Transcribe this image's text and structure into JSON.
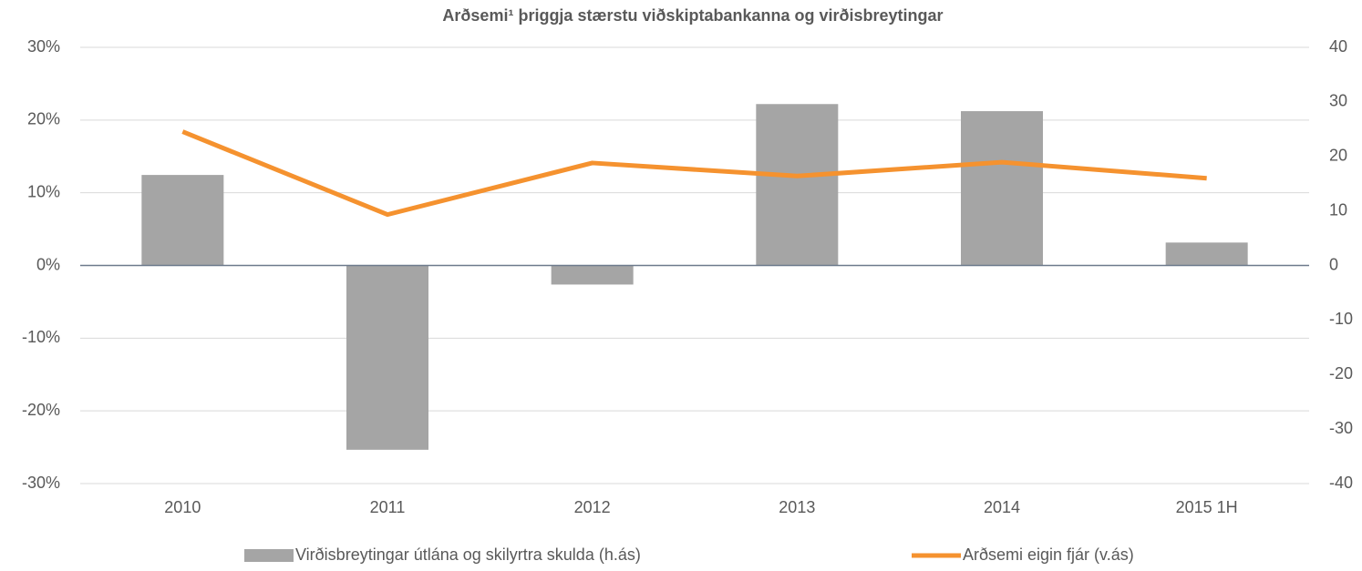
{
  "chart_data": {
    "type": "bar",
    "title": "Arðsemi¹ þriggja stærstu viðskiptabankanna og virðisbreytingar",
    "categories": [
      "2010",
      "2011",
      "2012",
      "2013",
      "2014",
      "2015 1H"
    ],
    "series": [
      {
        "name": "Virðisbreytingar útlána og skilyrtra skulda (h.ás)",
        "type": "bar",
        "axis": "y2",
        "color": "#a5a5a5",
        "values": [
          16.6,
          -33.8,
          -3.5,
          29.6,
          28.3,
          4.2
        ]
      },
      {
        "name": "Arðsemi eigin fjár (v.ás)",
        "type": "line",
        "axis": "y",
        "color": "#f5922f",
        "values": [
          18.4,
          7.0,
          14.1,
          12.3,
          14.2,
          12.0
        ]
      }
    ],
    "ylim": [
      -30,
      30
    ],
    "yticks": [
      {
        "value": -30,
        "label": "-30%"
      },
      {
        "value": -20,
        "label": "-20%"
      },
      {
        "value": -10,
        "label": "-10%"
      },
      {
        "value": 0,
        "label": "0%"
      },
      {
        "value": 10,
        "label": "10%"
      },
      {
        "value": 20,
        "label": "20%"
      },
      {
        "value": 30,
        "label": "30%"
      }
    ],
    "y2lim": [
      -40,
      40
    ],
    "y2ticks": [
      -40,
      -30,
      -20,
      -10,
      0,
      10,
      20,
      30,
      40
    ],
    "grid": true,
    "legend": "bottom"
  }
}
